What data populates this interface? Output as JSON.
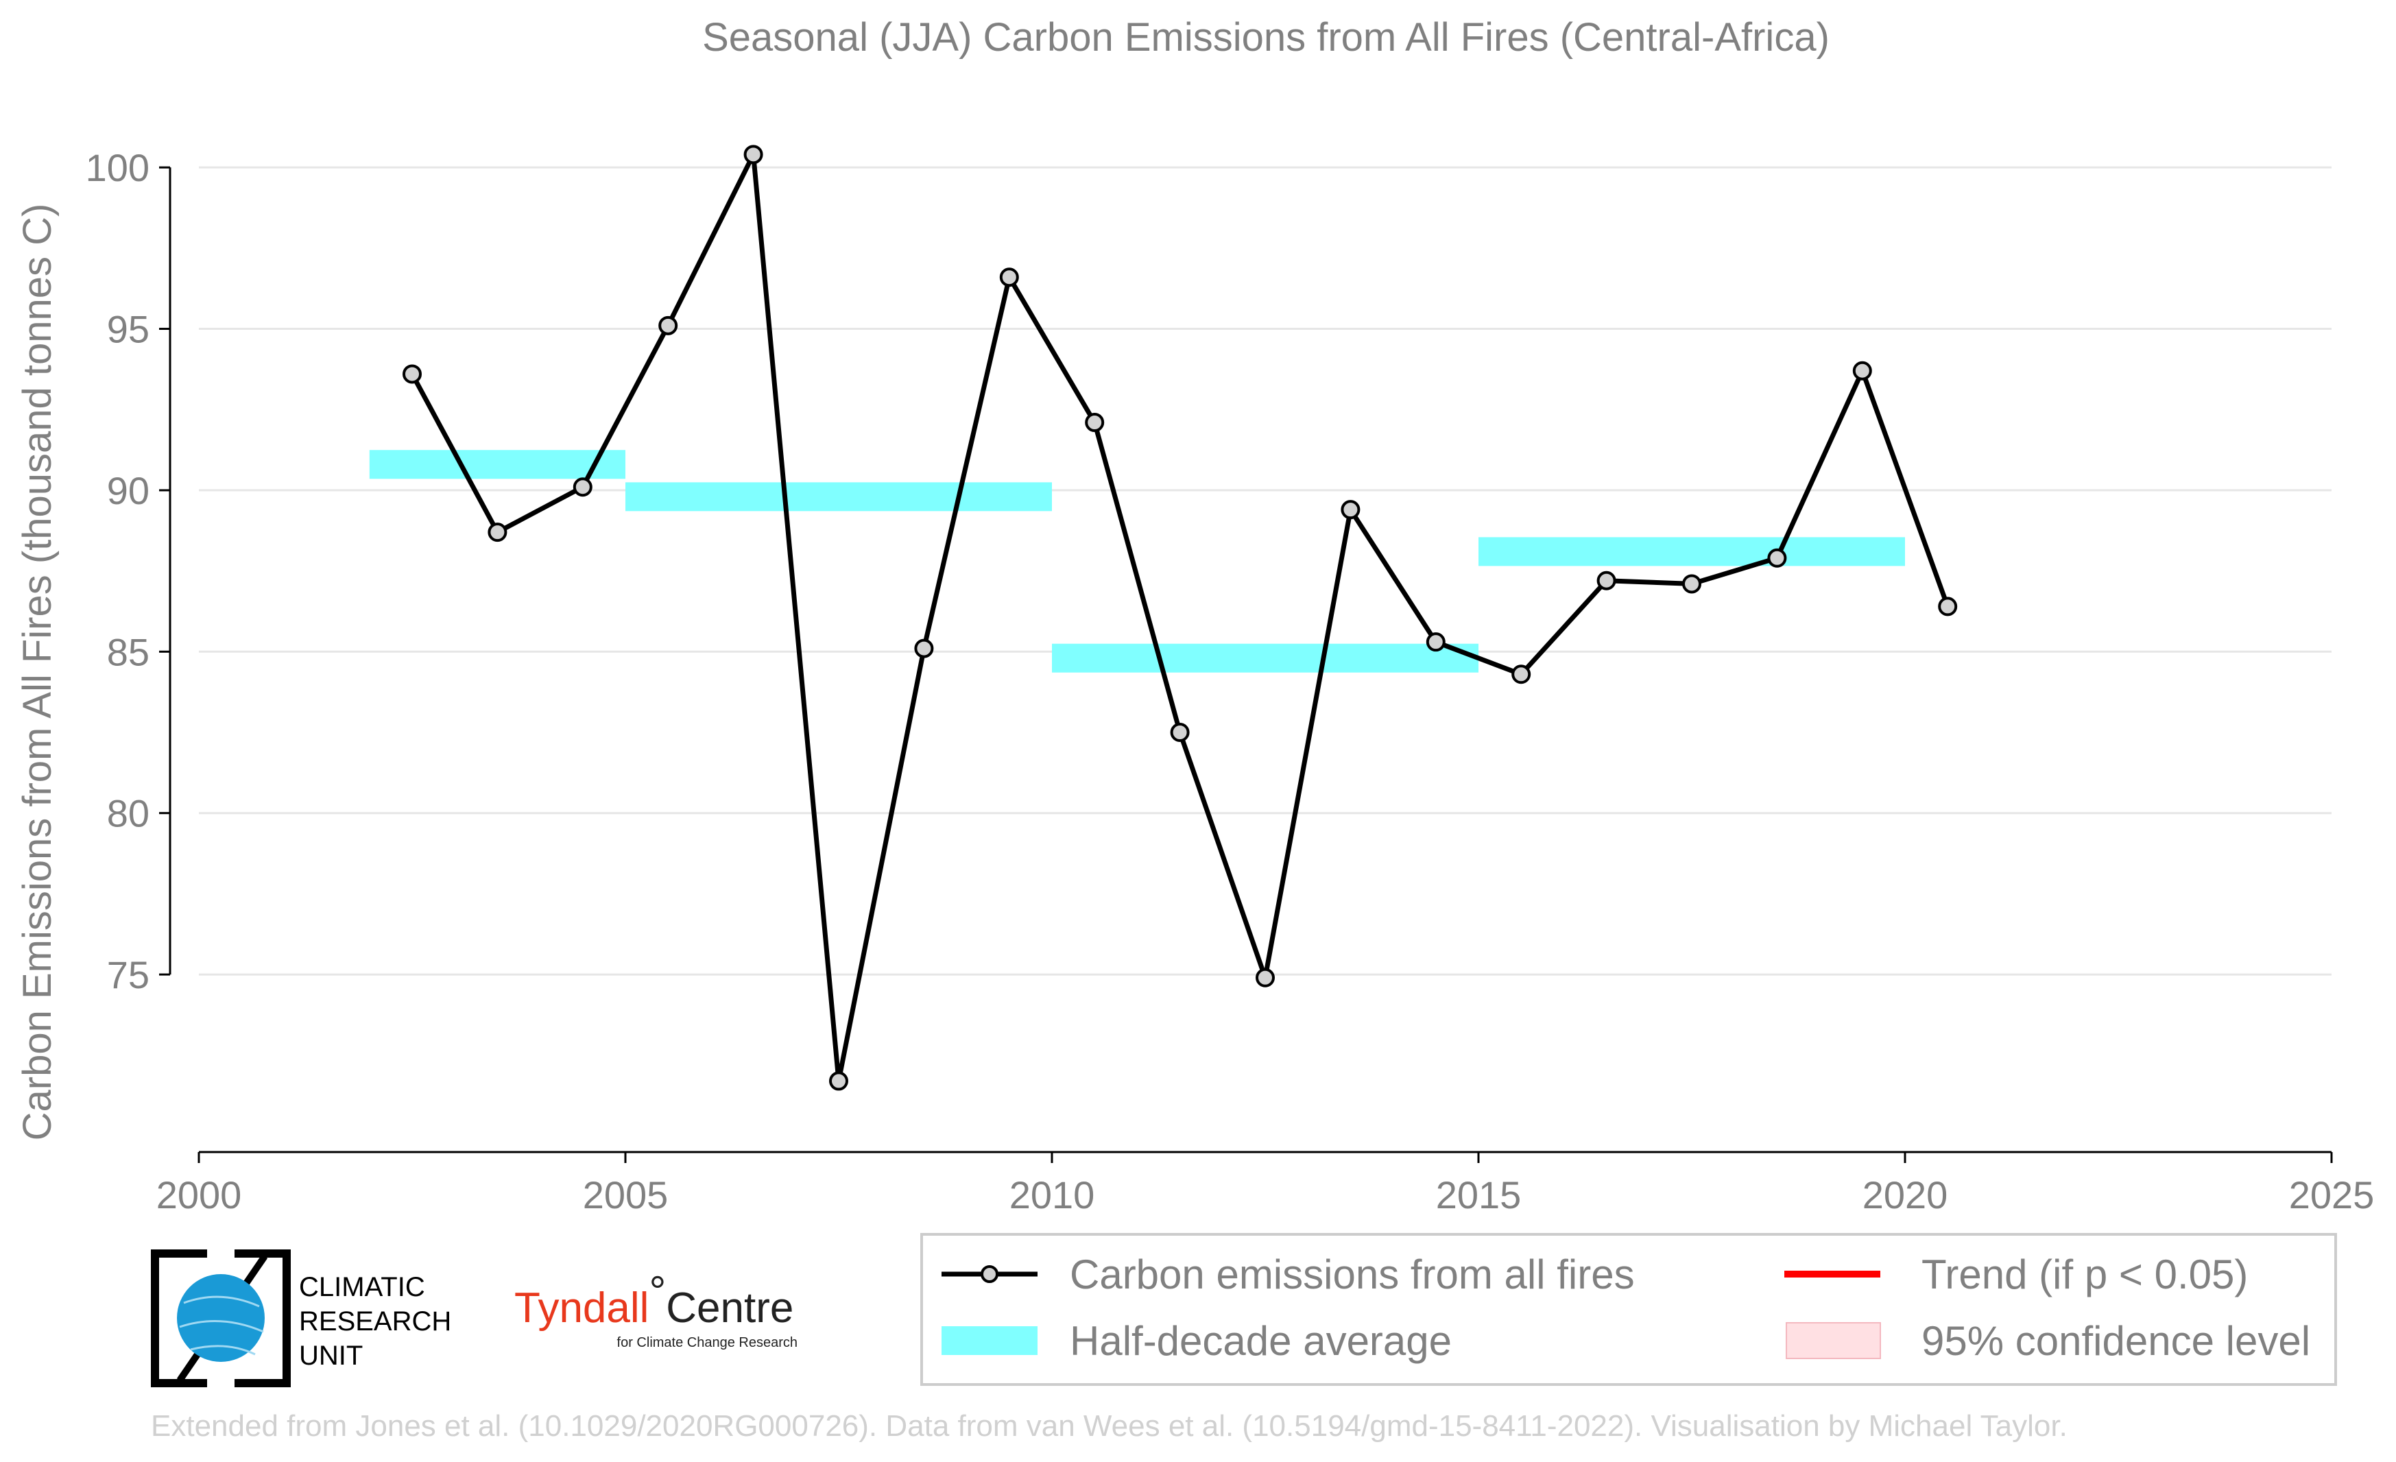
{
  "chart_data": {
    "type": "line",
    "title": "Seasonal (JJA) Carbon Emissions from All Fires (Central-Africa)",
    "xlabel": "",
    "ylabel": "Carbon Emissions from All Fires (thousand tonnes C)",
    "xlim": [
      2000,
      2025
    ],
    "ylim": [
      69.5,
      102
    ],
    "x_ticks": [
      2000,
      2005,
      2010,
      2015,
      2020,
      2025
    ],
    "y_ticks": [
      75,
      80,
      85,
      90,
      95,
      100
    ],
    "grid": "horizontal",
    "series": [
      {
        "name": "Carbon emissions from all fires",
        "color": "#000000",
        "marker_fill": "#d3d3d3",
        "x": [
          2002.5,
          2003.5,
          2004.5,
          2005.5,
          2006.5,
          2007.5,
          2008.5,
          2009.5,
          2010.5,
          2011.5,
          2012.5,
          2013.5,
          2014.5,
          2015.5,
          2016.5,
          2017.5,
          2018.5,
          2019.5,
          2020.5
        ],
        "y": [
          93.6,
          88.7,
          90.1,
          95.1,
          100.4,
          71.7,
          85.1,
          96.6,
          92.1,
          82.5,
          74.9,
          89.4,
          85.3,
          84.3,
          87.2,
          87.1,
          87.9,
          93.7,
          86.4
        ]
      }
    ],
    "half_decade_average": {
      "name": "Half-decade average",
      "color": "#80ffff",
      "segments": [
        {
          "x0": 2002,
          "x1": 2005,
          "y": 90.8
        },
        {
          "x0": 2005,
          "x1": 2010,
          "y": 89.8
        },
        {
          "x0": 2010,
          "x1": 2015,
          "y": 84.8
        },
        {
          "x0": 2015,
          "x1": 2020,
          "y": 88.1
        }
      ]
    },
    "legend": {
      "placement": "bottom-right",
      "entries": [
        {
          "label": "Carbon emissions from all fires",
          "kind": "line-marker",
          "color": "#000000"
        },
        {
          "label": "Trend (if p < 0.05)",
          "kind": "line",
          "color": "#ff0000"
        },
        {
          "label": "Half-decade average",
          "kind": "band",
          "color": "#80ffff"
        },
        {
          "label": "95% confidence level",
          "kind": "patch",
          "color": "#ffe0e3"
        }
      ]
    }
  },
  "logos": {
    "cru_line1": "CLIMATIC",
    "cru_line2": "RESEARCH",
    "cru_line3": "UNIT",
    "tyndall_red": "Tyndall",
    "tyndall_degree": "°",
    "tyndall_black": "Centre",
    "tyndall_sub": "for Climate Change Research"
  },
  "credit": "Extended from Jones et al. (10.1029/2020RG000726). Data from van Wees et al. (10.5194/gmd-15-8411-2022). Visualisation by Michael Taylor."
}
